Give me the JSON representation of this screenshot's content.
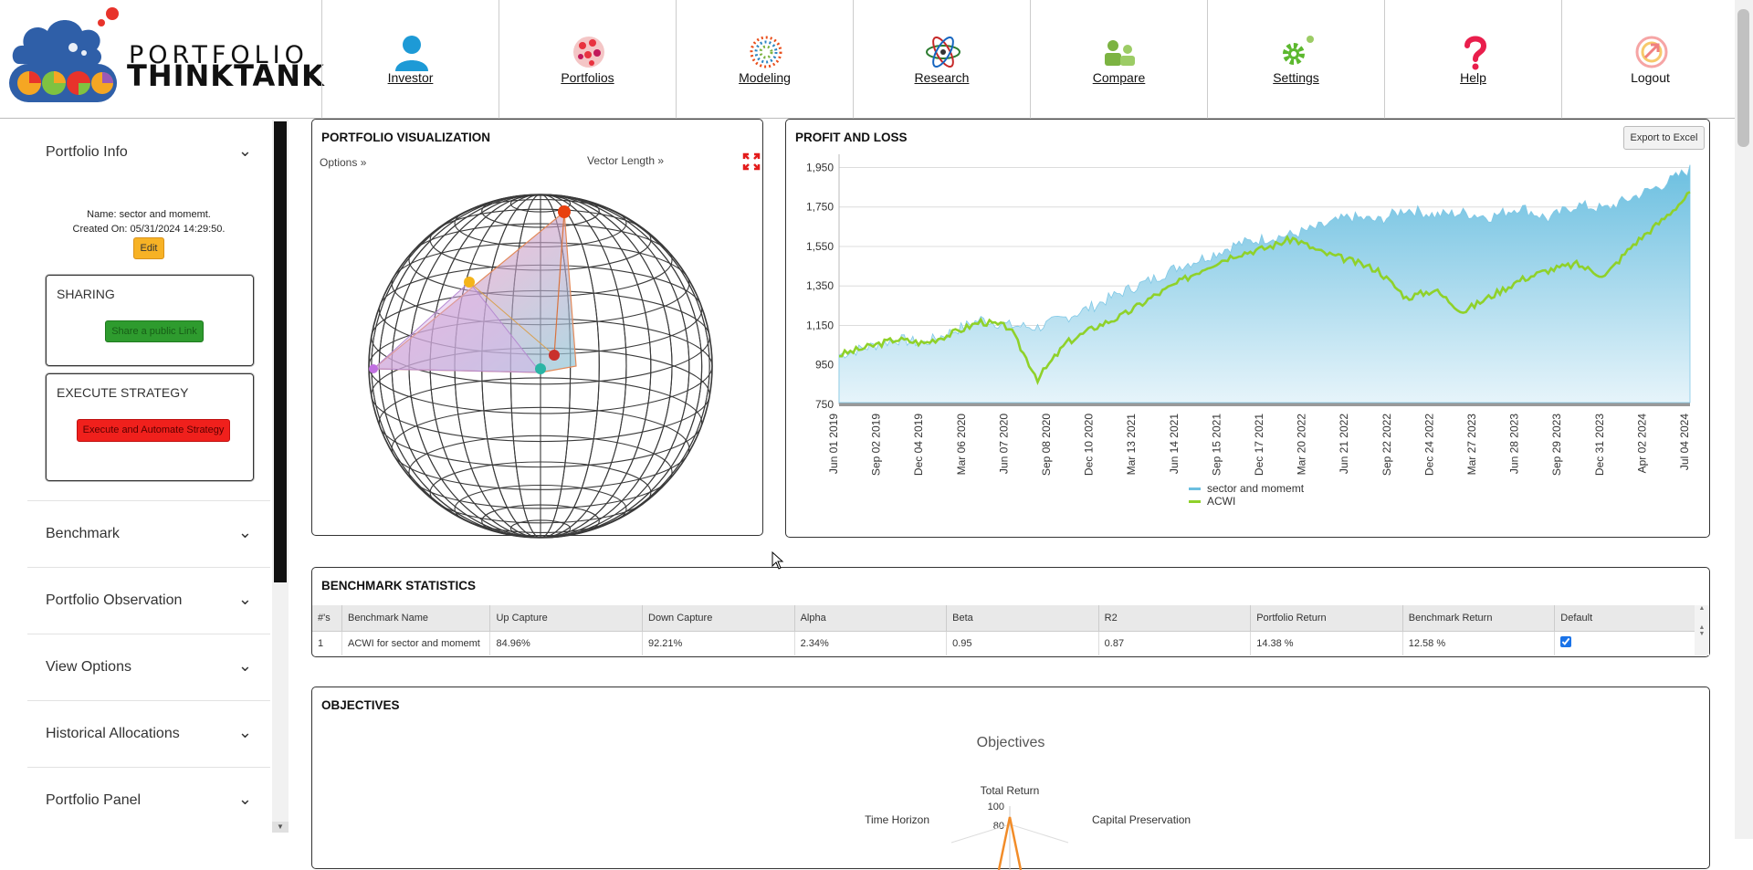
{
  "brand": {
    "line1": "PORTFOLIO",
    "line2": "THINKTANK"
  },
  "nav": [
    {
      "label": "Investor",
      "icon": "user-icon"
    },
    {
      "label": "Portfolios",
      "icon": "portfolios-icon"
    },
    {
      "label": "Modeling",
      "icon": "modeling-icon"
    },
    {
      "label": "Research",
      "icon": "atom-icon"
    },
    {
      "label": "Compare",
      "icon": "compare-icon"
    },
    {
      "label": "Settings",
      "icon": "gear-icon"
    },
    {
      "label": "Help",
      "icon": "question-icon"
    },
    {
      "label": "Logout",
      "icon": "logout-icon"
    }
  ],
  "sidebar": {
    "portfolio_info": "Portfolio Info",
    "name_line": "Name: sector and momemt.",
    "created_line": "Created On: 05/31/2024 14:29:50.",
    "edit_label": "Edit",
    "sharing_title": "SHARING",
    "share_label": "Share a public Link",
    "execute_title": "EXECUTE STRATEGY",
    "execute_label": "Execute and Automate Strategy",
    "sections": [
      "Benchmark",
      "Portfolio Observation",
      "View Options",
      "Historical Allocations",
      "Portfolio Panel"
    ]
  },
  "viz": {
    "title": "PORTFOLIO VISUALIZATION",
    "options_label": "Options »",
    "vector_label": "Vector Length »"
  },
  "pnl": {
    "title": "PROFIT AND LOSS",
    "export_label": "Export to Excel"
  },
  "chart_data": {
    "type": "area",
    "title": "PROFIT AND LOSS",
    "ylim": [
      750,
      1980
    ],
    "y_ticks": [
      "1,950",
      "1,750",
      "1,550",
      "1,350",
      "1,150",
      "950",
      "750"
    ],
    "x_ticks": [
      "Jun 01 2019",
      "Sep 02 2019",
      "Dec 04 2019",
      "Mar 06 2020",
      "Jun 07 2020",
      "Sep 08 2020",
      "Dec 10 2020",
      "Mar 13 2021",
      "Jun 14 2021",
      "Sep 15 2021",
      "Dec 17 2021",
      "Mar 20 2022",
      "Jun 21 2022",
      "Sep 22 2022",
      "Dec 24 2022",
      "Mar 27 2023",
      "Jun 28 2023",
      "Sep 29 2023",
      "Dec 31 2023",
      "Apr 02 2024",
      "Jul 04 2024"
    ],
    "legend_position": "bottom",
    "series": [
      {
        "name": "sector  and momemt",
        "color": "#6bbfe0",
        "values": [
          1000,
          1040,
          1080,
          1060,
          1120,
          1180,
          1150,
          1140,
          1190,
          1250,
          1320,
          1380,
          1450,
          1500,
          1560,
          1590,
          1610,
          1650,
          1700,
          1680,
          1740,
          1710,
          1720,
          1700,
          1750,
          1690,
          1760,
          1740,
          1800,
          1860,
          1940
        ]
      },
      {
        "name": "ACWI",
        "color": "#8fd12a",
        "values": [
          1000,
          1040,
          1080,
          1060,
          1110,
          1170,
          1140,
          880,
          1060,
          1140,
          1200,
          1290,
          1370,
          1450,
          1510,
          1540,
          1590,
          1520,
          1480,
          1430,
          1290,
          1330,
          1220,
          1300,
          1380,
          1430,
          1460,
          1400,
          1560,
          1680,
          1820
        ]
      }
    ]
  },
  "bench": {
    "title": "BENCHMARK STATISTICS",
    "columns": [
      "#'s",
      "Benchmark Name",
      "Up Capture",
      "Down Capture",
      "Alpha",
      "Beta",
      "R2",
      "Portfolio Return",
      "Benchmark Return",
      "Default"
    ],
    "row": [
      "1",
      "ACWI for sector and momemt",
      "84.96%",
      "92.21%",
      "2.34%",
      "0.95",
      "0.87",
      "14.38 %",
      "12.58 %"
    ]
  },
  "objectives": {
    "title": "OBJECTIVES",
    "chart_title": "Objectives",
    "axis_top": "Total Return",
    "axis_left": "Time Horizon",
    "axis_right": "Capital Preservation",
    "tick_100": "100",
    "tick_80": "80"
  }
}
